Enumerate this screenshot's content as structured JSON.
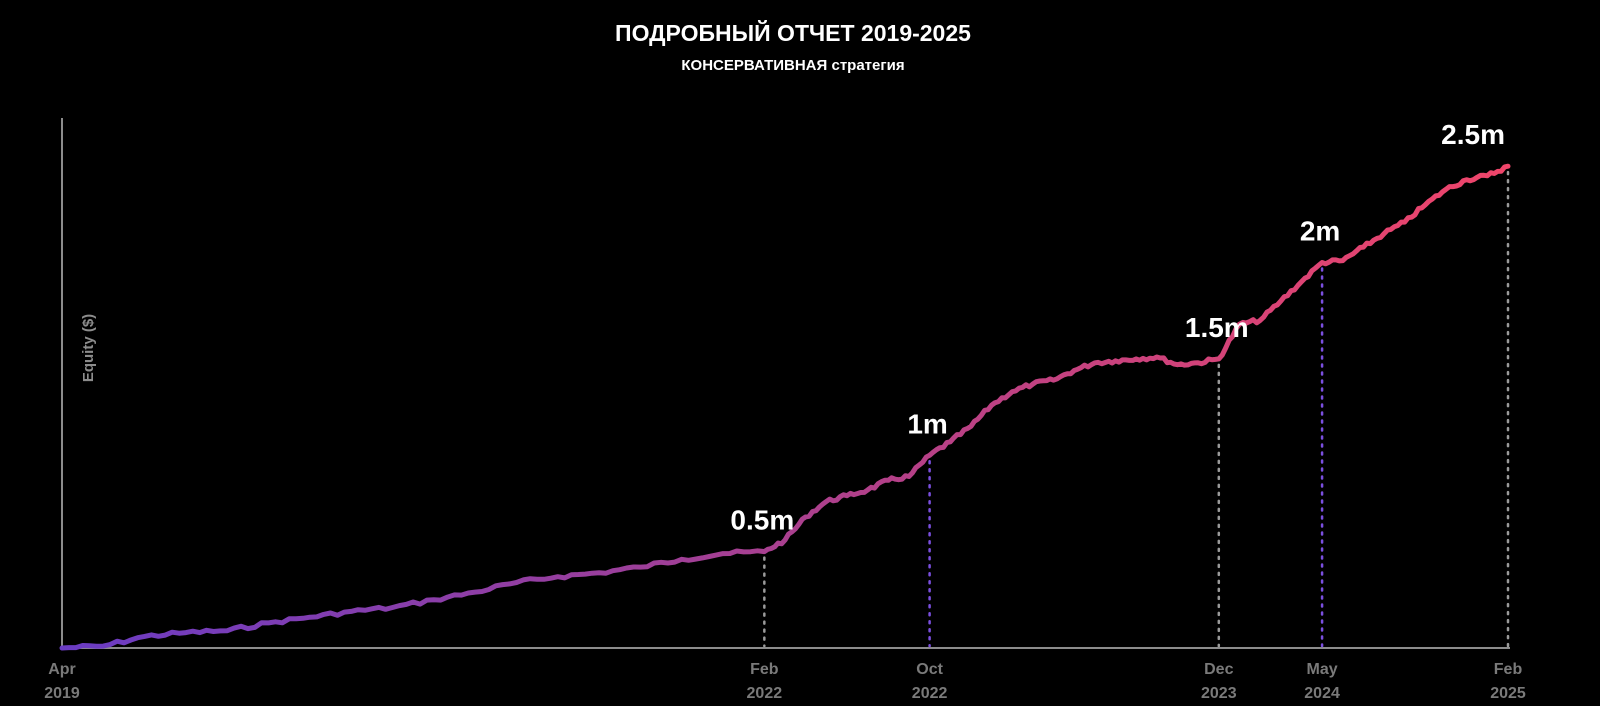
{
  "header": {
    "title": "ПОДРОБНЫЙ ОТЧЕТ 2019-2025",
    "subtitle_strong": "КОНСЕРВАТИВНАЯ",
    "subtitle_normal": " стратегия"
  },
  "colors": {
    "background": "#000000",
    "axis": "#8c8c8c",
    "line_start": "#6a3cc4",
    "line_mid": "#b0408a",
    "line_end": "#f0456a",
    "guide_gray": "#9a9a9a",
    "guide_purple": "#7b4fe0"
  },
  "chart_data": {
    "type": "line",
    "title": "ПОДРОБНЫЙ ОТЧЕТ 2019-2025",
    "subtitle": "КОНСЕРВАТИВНАЯ стратегия",
    "xlabel": "",
    "ylabel": "Equity ($)",
    "x_range": [
      "2019-04",
      "2025-02"
    ],
    "ylim": [
      0,
      2750000
    ],
    "grid": false,
    "x_ticks": [
      {
        "date": "2019-04",
        "line1": "Apr",
        "line2": "2019"
      },
      {
        "date": "2022-02",
        "line1": "Feb",
        "line2": "2022"
      },
      {
        "date": "2022-10",
        "line1": "Oct",
        "line2": "2022"
      },
      {
        "date": "2023-12",
        "line1": "Dec",
        "line2": "2023"
      },
      {
        "date": "2024-05",
        "line1": "May",
        "line2": "2024"
      },
      {
        "date": "2025-02",
        "line1": "Feb",
        "line2": "2025"
      }
    ],
    "milestones": [
      {
        "date": "2022-02",
        "value": 500000,
        "label": "0.5m",
        "guide": "gray"
      },
      {
        "date": "2022-10",
        "value": 1000000,
        "label": "1m",
        "guide": "purple"
      },
      {
        "date": "2023-12",
        "value": 1500000,
        "label": "1.5m",
        "guide": "gray"
      },
      {
        "date": "2024-05",
        "value": 2000000,
        "label": "2m",
        "guide": "purple"
      },
      {
        "date": "2025-02",
        "value": 2500000,
        "label": "2.5m",
        "guide": "gray"
      }
    ],
    "series": [
      {
        "x": [
          "2019-04",
          "2019-06",
          "2019-08",
          "2019-10",
          "2019-12",
          "2020-02",
          "2020-04",
          "2020-06",
          "2020-08",
          "2020-10",
          "2020-12",
          "2021-02",
          "2021-04",
          "2021-06",
          "2021-08",
          "2021-10",
          "2021-12",
          "2022-02",
          "2022-03",
          "2022-04",
          "2022-05",
          "2022-06",
          "2022-07",
          "2022-08",
          "2022-09",
          "2022-10",
          "2022-11",
          "2022-12",
          "2023-01",
          "2023-02",
          "2023-03",
          "2023-04",
          "2023-05",
          "2023-06",
          "2023-07",
          "2023-08",
          "2023-09",
          "2023-10",
          "2023-11",
          "2023-12",
          "2024-01",
          "2024-02",
          "2024-03",
          "2024-04",
          "2024-05",
          "2024-06",
          "2024-07",
          "2024-08",
          "2024-09",
          "2024-10",
          "2024-11",
          "2024-12",
          "2025-01",
          "2025-02"
        ],
        "y": [
          0,
          10000,
          60000,
          80000,
          90000,
          130000,
          160000,
          190000,
          210000,
          250000,
          290000,
          340000,
          370000,
          390000,
          420000,
          460000,
          490000,
          500000,
          560000,
          680000,
          760000,
          790000,
          820000,
          870000,
          890000,
          1000000,
          1070000,
          1150000,
          1260000,
          1330000,
          1370000,
          1390000,
          1440000,
          1480000,
          1490000,
          1500000,
          1510000,
          1470000,
          1480000,
          1500000,
          1680000,
          1700000,
          1800000,
          1900000,
          2000000,
          2010000,
          2080000,
          2150000,
          2210000,
          2300000,
          2380000,
          2430000,
          2450000,
          2500000
        ]
      }
    ]
  }
}
